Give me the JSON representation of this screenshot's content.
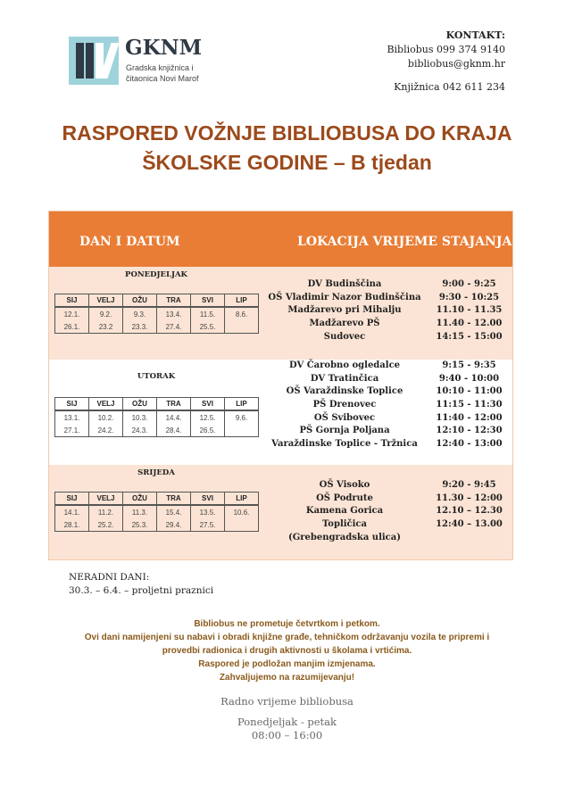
{
  "logo": {
    "title": "GKNM",
    "line1": "Gradska knjižnica i",
    "line2": "čitaonica Novi Marof"
  },
  "contact": {
    "label": "KONTAKT:",
    "bibliobus_phone": "Bibliobus 099 374 9140",
    "email": "bibliobus@gknm.hr",
    "library_phone": "Knjižnica  042 611 234"
  },
  "title": {
    "line1": "RASPORED VOŽNJE BIBLIOBUSA DO KRAJA",
    "line2": "ŠKOLSKE GODINE – B tjedan"
  },
  "colors": {
    "header": "#e97d35",
    "title": "#9c4a1c",
    "band": "#fbe4d5"
  },
  "table_header": {
    "left": "DAN I DATUM",
    "right": "LOKACIJA  VRIJEME STAJANJA"
  },
  "months": [
    "SIJ",
    "VELJ",
    "OŽU",
    "TRA",
    "SVI",
    "LIP"
  ],
  "days": [
    {
      "name": "PONEDJELJAK",
      "dates": [
        [
          "12.1.",
          "9.2.",
          "9.3.",
          "13.4.",
          "11.5.",
          "8.6."
        ],
        [
          "26.1.",
          "23.2",
          "23.3.",
          "27.4.",
          "25.5.",
          ""
        ]
      ],
      "stops": [
        {
          "loc": "DV Budinščina",
          "time": "9:00 - 9:25"
        },
        {
          "loc": "OŠ Vladimir Nazor Budinščina",
          "time": "9:30 - 10:25"
        },
        {
          "loc": "Madžarevo pri Mihalju",
          "time": "11.10 - 11.35"
        },
        {
          "loc": "Madžarevo PŠ",
          "time": "11.40 - 12.00"
        },
        {
          "loc": "Sudovec",
          "time": "14:15 - 15:00"
        }
      ]
    },
    {
      "name": "UTORAK",
      "dates": [
        [
          "13.1.",
          "10.2.",
          "10.3.",
          "14.4.",
          "12.5.",
          "9.6."
        ],
        [
          "27.1.",
          "24.2.",
          "24.3.",
          "28.4.",
          "26.5.",
          ""
        ]
      ],
      "stops": [
        {
          "loc": "DV Čarobno ogledalce",
          "time": "9:15 - 9:35"
        },
        {
          "loc": "DV Tratinčica",
          "time": "9:40 - 10:00"
        },
        {
          "loc": "OŠ Varaždinske Toplice",
          "time": "10:10 - 11:00"
        },
        {
          "loc": "PŠ Drenovec",
          "time": "11:15 - 11:30"
        },
        {
          "loc": "OŠ Svibovec",
          "time": "11:40 - 12:00"
        },
        {
          "loc": "PŠ Gornja Poljana",
          "time": "12:10 - 12:30"
        },
        {
          "loc": "Varaždinske Toplice - Tržnica",
          "time": "12:40 - 13:00"
        }
      ]
    },
    {
      "name": "SRIJEDA",
      "dates": [
        [
          "14.1.",
          "11.2.",
          "11.3.",
          "15.4.",
          "13.5.",
          "10.6."
        ],
        [
          "28.1.",
          "25.2.",
          "25.3.",
          "29.4.",
          "27.5.",
          ""
        ]
      ],
      "stops": [
        {
          "loc": "OŠ Visoko",
          "time": "9:20 - 9:45"
        },
        {
          "loc": "OŠ Podrute",
          "time": "11.30 – 12:00"
        },
        {
          "loc": "Kamena Gorica",
          "time": "12.10 – 12.30"
        },
        {
          "loc": "Topličica",
          "time": "12:40 – 13.00"
        },
        {
          "loc": "(Grebengradska ulica)",
          "time": ""
        }
      ]
    }
  ],
  "nonworking": {
    "label": "NERADNI DANI:",
    "text": "30.3. – 6.4. – proljetni praznici"
  },
  "notes": [
    "Bibliobus ne prometuje četvrtkom i petkom.",
    "Ovi dani namijenjeni su nabavi i obradi knjižne građe, tehničkom održavanju vozila te pripremi i",
    "provedbi radionica i drugih aktivnosti u školama i vrtićima.",
    "Raspored je podložan manjim izmjenama.",
    "Zahvaljujemo na razumijevanju!"
  ],
  "hours": {
    "label": "Radno vrijeme bibliobusa",
    "days": "Ponedjeljak - petak",
    "time": "08:00 – 16:00"
  }
}
